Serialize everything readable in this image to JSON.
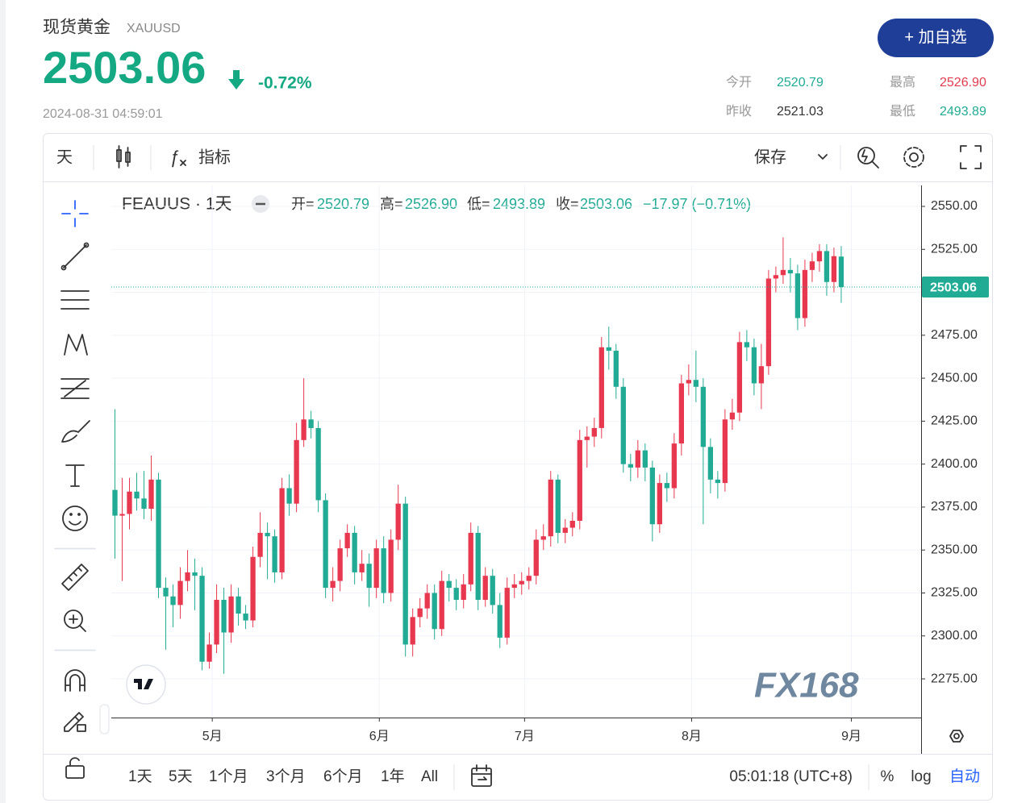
{
  "header": {
    "name": "现货黄金",
    "symbol": "XAUUSD",
    "price": "2503.06",
    "change": "-0.72%",
    "time": "2024-08-31 04:59:01",
    "button": "+ 加自选",
    "stats": [
      {
        "label": "今开",
        "value": "2520.79"
      },
      {
        "label": "最高",
        "value": "2526.90"
      },
      {
        "label": "昨收",
        "value": "2521.03"
      },
      {
        "label": "最低",
        "value": "2493.89"
      }
    ]
  },
  "toolbar": {
    "interval": "天",
    "indicators": "指标",
    "save": "保存"
  },
  "legend": {
    "symbol": "FEAUUS · 1天",
    "fields": [
      {
        "label": "开=",
        "value": "2520.79"
      },
      {
        "label": "高=",
        "value": "2526.90"
      },
      {
        "label": "低=",
        "value": "2493.89"
      },
      {
        "label": "收=",
        "value": "2503.06"
      }
    ],
    "change": "−17.97 (−0.71%)"
  },
  "chart_data": {
    "type": "candlestick",
    "up_color": "#e8384f",
    "down_color": "#22ab94",
    "grid": true,
    "xlim": [
      -0.5,
      111
    ],
    "xticks": [
      {
        "value": 13.4,
        "label": "5月"
      },
      {
        "value": 36.4,
        "label": "6月"
      },
      {
        "value": 56.4,
        "label": "7月"
      },
      {
        "value": 79.4,
        "label": "8月"
      },
      {
        "value": 101.4,
        "label": "9月"
      }
    ],
    "ylim": [
      2252.5,
      2562.2
    ],
    "yticks": [
      {
        "value": 2275,
        "label": "2275.00"
      },
      {
        "value": 2300,
        "label": "2300.00"
      },
      {
        "value": 2325,
        "label": "2325.00"
      },
      {
        "value": 2350,
        "label": "2350.00"
      },
      {
        "value": 2375,
        "label": "2375.00"
      },
      {
        "value": 2400,
        "label": "2400.00"
      },
      {
        "value": 2425,
        "label": "2425.00"
      },
      {
        "value": 2450,
        "label": "2450.00"
      },
      {
        "value": 2475,
        "label": "2475.00"
      },
      {
        "value": 2500,
        "label": "2500.00"
      },
      {
        "value": 2525,
        "label": "2525.00"
      },
      {
        "value": 2550,
        "label": "2550.00"
      }
    ],
    "ohlc": [
      [
        2385,
        2432,
        2345,
        2370
      ],
      [
        2370,
        2392,
        2332,
        2371
      ],
      [
        2371,
        2392,
        2362,
        2384
      ],
      [
        2384,
        2395,
        2373,
        2380
      ],
      [
        2380,
        2396,
        2368,
        2374
      ],
      [
        2374,
        2405,
        2367,
        2391
      ],
      [
        2391,
        2395,
        2322,
        2328
      ],
      [
        2328,
        2334,
        2292,
        2323
      ],
      [
        2323,
        2330,
        2305,
        2318
      ],
      [
        2318,
        2340,
        2310,
        2332
      ],
      [
        2332,
        2350,
        2326,
        2337
      ],
      [
        2337,
        2345,
        2315,
        2335
      ],
      [
        2335,
        2340,
        2280,
        2285
      ],
      [
        2285,
        2302,
        2281,
        2295
      ],
      [
        2295,
        2330,
        2290,
        2321
      ],
      [
        2321,
        2328,
        2278,
        2302
      ],
      [
        2302,
        2330,
        2296,
        2323
      ],
      [
        2323,
        2328,
        2306,
        2313
      ],
      [
        2313,
        2318,
        2304,
        2309
      ],
      [
        2309,
        2352,
        2305,
        2346
      ],
      [
        2346,
        2372,
        2340,
        2360
      ],
      [
        2360,
        2366,
        2333,
        2358
      ],
      [
        2358,
        2362,
        2331,
        2337
      ],
      [
        2337,
        2392,
        2333,
        2386
      ],
      [
        2386,
        2394,
        2370,
        2377
      ],
      [
        2377,
        2424,
        2372,
        2414
      ],
      [
        2414,
        2450,
        2410,
        2426
      ],
      [
        2426,
        2431,
        2415,
        2421
      ],
      [
        2421,
        2425,
        2372,
        2379
      ],
      [
        2379,
        2383,
        2322,
        2328
      ],
      [
        2328,
        2340,
        2320,
        2332
      ],
      [
        2332,
        2356,
        2326,
        2351
      ],
      [
        2351,
        2365,
        2346,
        2360
      ],
      [
        2360,
        2364,
        2330,
        2337
      ],
      [
        2337,
        2350,
        2332,
        2342
      ],
      [
        2342,
        2348,
        2317,
        2328
      ],
      [
        2328,
        2356,
        2322,
        2351
      ],
      [
        2351,
        2358,
        2319,
        2325
      ],
      [
        2325,
        2362,
        2320,
        2356
      ],
      [
        2356,
        2388,
        2350,
        2377
      ],
      [
        2377,
        2381,
        2288,
        2295
      ],
      [
        2295,
        2316,
        2288,
        2311
      ],
      [
        2311,
        2322,
        2305,
        2316
      ],
      [
        2316,
        2330,
        2310,
        2325
      ],
      [
        2325,
        2330,
        2298,
        2304
      ],
      [
        2304,
        2338,
        2300,
        2332
      ],
      [
        2332,
        2336,
        2320,
        2328
      ],
      [
        2328,
        2333,
        2315,
        2321
      ],
      [
        2321,
        2336,
        2316,
        2330
      ],
      [
        2330,
        2366,
        2326,
        2360
      ],
      [
        2360,
        2364,
        2315,
        2321
      ],
      [
        2321,
        2340,
        2317,
        2335
      ],
      [
        2335,
        2339,
        2313,
        2318
      ],
      [
        2318,
        2325,
        2293,
        2299
      ],
      [
        2299,
        2334,
        2295,
        2328
      ],
      [
        2328,
        2336,
        2322,
        2330
      ],
      [
        2330,
        2337,
        2324,
        2332
      ],
      [
        2332,
        2340,
        2327,
        2335
      ],
      [
        2335,
        2362,
        2330,
        2356
      ],
      [
        2356,
        2365,
        2350,
        2358
      ],
      [
        2358,
        2396,
        2352,
        2391
      ],
      [
        2391,
        2394,
        2354,
        2360
      ],
      [
        2360,
        2368,
        2354,
        2363
      ],
      [
        2363,
        2372,
        2358,
        2367
      ],
      [
        2367,
        2420,
        2362,
        2414
      ],
      [
        2414,
        2422,
        2398,
        2416
      ],
      [
        2416,
        2427,
        2410,
        2421
      ],
      [
        2421,
        2474,
        2415,
        2468
      ],
      [
        2468,
        2480,
        2455,
        2466
      ],
      [
        2466,
        2470,
        2438,
        2445
      ],
      [
        2445,
        2450,
        2395,
        2400
      ],
      [
        2400,
        2406,
        2390,
        2398
      ],
      [
        2398,
        2414,
        2392,
        2408
      ],
      [
        2408,
        2412,
        2390,
        2398
      ],
      [
        2398,
        2402,
        2355,
        2365
      ],
      [
        2365,
        2394,
        2360,
        2389
      ],
      [
        2389,
        2395,
        2378,
        2386
      ],
      [
        2386,
        2418,
        2380,
        2412
      ],
      [
        2412,
        2452,
        2405,
        2447
      ],
      [
        2447,
        2458,
        2440,
        2449
      ],
      [
        2449,
        2466,
        2436,
        2445
      ],
      [
        2445,
        2450,
        2365,
        2410
      ],
      [
        2410,
        2415,
        2383,
        2391
      ],
      [
        2391,
        2396,
        2380,
        2389
      ],
      [
        2389,
        2432,
        2384,
        2426
      ],
      [
        2426,
        2438,
        2420,
        2430
      ],
      [
        2430,
        2477,
        2425,
        2471
      ],
      [
        2471,
        2478,
        2460,
        2468
      ],
      [
        2468,
        2473,
        2440,
        2447
      ],
      [
        2447,
        2470,
        2432,
        2457
      ],
      [
        2457,
        2513,
        2452,
        2508
      ],
      [
        2508,
        2515,
        2500,
        2510
      ],
      [
        2510,
        2532,
        2505,
        2513
      ],
      [
        2513,
        2520,
        2500,
        2511
      ],
      [
        2511,
        2516,
        2478,
        2485
      ],
      [
        2485,
        2519,
        2480,
        2513
      ],
      [
        2513,
        2523,
        2506,
        2518
      ],
      [
        2518,
        2528,
        2512,
        2524
      ],
      [
        2524,
        2528,
        2498,
        2506
      ],
      [
        2506,
        2526,
        2500,
        2521.03
      ],
      [
        2520.79,
        2526.9,
        2493.89,
        2503.06
      ]
    ]
  },
  "watermark": "FX168",
  "footer": {
    "ranges": [
      "1天",
      "5天",
      "1个月",
      "3个月",
      "6个月",
      "1年",
      "All"
    ],
    "clock": "05:01:18 (UTC+8)",
    "options": [
      "%",
      "log",
      "自动"
    ]
  }
}
